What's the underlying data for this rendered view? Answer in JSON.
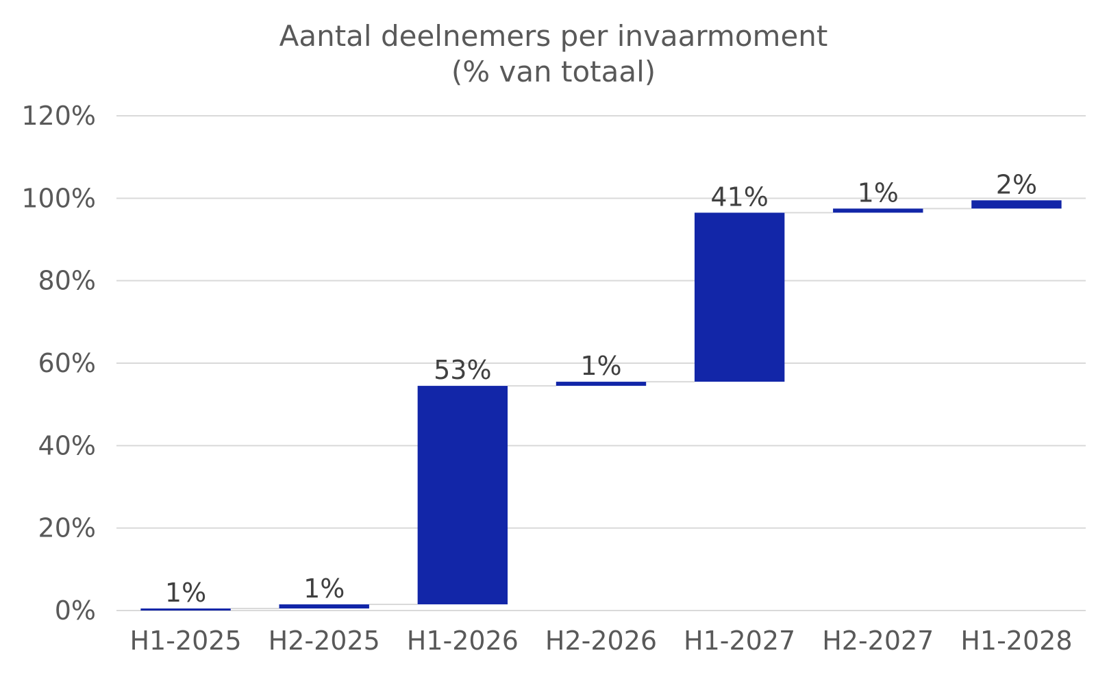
{
  "chart_data": {
    "type": "bar",
    "subtype": "waterfall",
    "title": "Aantal deelnemers per invaarmoment",
    "subtitle": "(% van totaal)",
    "categories": [
      "H1-2025",
      "H2-2025",
      "H1-2026",
      "H2-2026",
      "H1-2027",
      "H2-2027",
      "H1-2028"
    ],
    "series": [
      {
        "values": [
          0.5,
          1,
          53,
          1,
          41,
          1,
          2
        ],
        "base": [
          0,
          0.5,
          1.5,
          54.5,
          55.5,
          96.5,
          97.5
        ],
        "data_labels": [
          "1%",
          "1%",
          "53%",
          "1%",
          "41%",
          "1%",
          "2%"
        ],
        "color": "#1226A8"
      }
    ],
    "xlabel": "",
    "ylabel": "",
    "ylim": [
      0,
      120
    ],
    "yticks": [
      0,
      20,
      40,
      60,
      80,
      100,
      120
    ],
    "ytick_labels": [
      "0%",
      "20%",
      "40%",
      "60%",
      "80%",
      "100%",
      "120%"
    ],
    "grid": true,
    "legend": "none"
  }
}
